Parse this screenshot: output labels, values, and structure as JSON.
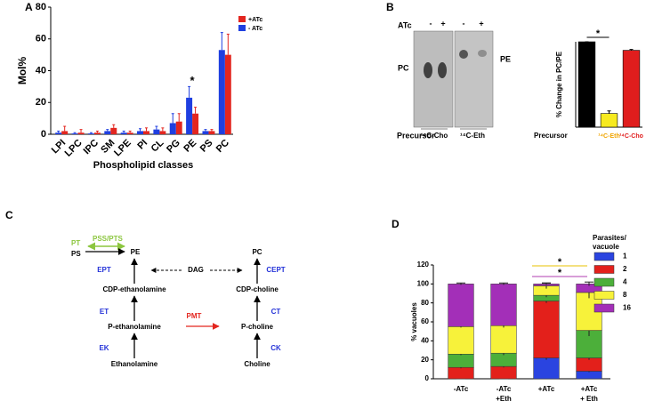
{
  "panels": [
    "A",
    "B",
    "C",
    "D"
  ],
  "chart_data": [
    {
      "type": "bar",
      "ylabel": "Mol%",
      "xlabel": "Phospholipid classes",
      "categories": [
        "LPI",
        "LPC",
        "IPC",
        "SM",
        "LPE",
        "PI",
        "CL",
        "PG",
        "PE",
        "PS",
        "PC"
      ],
      "series": [
        {
          "name": "+ATc",
          "color": "#e3261f",
          "values": [
            2,
            1,
            1,
            4,
            1,
            2,
            2,
            8,
            13,
            2,
            50
          ],
          "errors": [
            3,
            2,
            1,
            2,
            1,
            2,
            2,
            5,
            4,
            1,
            13
          ]
        },
        {
          "name": "- ATc",
          "color": "#1f3fe0",
          "values": [
            1,
            0.5,
            0.5,
            2,
            1,
            2,
            3,
            7,
            23,
            2,
            53
          ],
          "errors": [
            1,
            0.5,
            0.5,
            1,
            1,
            1.5,
            2,
            6,
            7,
            1,
            11
          ]
        }
      ],
      "ylim": [
        0,
        80
      ],
      "yticks": [
        0,
        20,
        40,
        60,
        80
      ],
      "legend": "top-right",
      "annotations": [
        {
          "text": "*",
          "category": "PE"
        }
      ]
    },
    {
      "type": "bar",
      "ylabel": "% Change in PC/PE",
      "xlabel": "Precursor",
      "categories": [
        null,
        "¹⁴C-Eth",
        "¹⁴C-Cho"
      ],
      "values": [
        100,
        16,
        90
      ],
      "errors": [
        0,
        3,
        1
      ],
      "colors": [
        "#000000",
        "#f7ea1f",
        "#e01d1d"
      ],
      "category_colors": [
        "#000000",
        "#f0a400",
        "#e01d1d"
      ],
      "ylim": [
        0,
        100
      ],
      "annotations": [
        {
          "text": "*"
        }
      ]
    },
    {
      "type": "stacked_bar",
      "ylabel": "% vacuoles",
      "categories": [
        [
          "-ATc"
        ],
        [
          "-ATc",
          "+Eth"
        ],
        [
          "+ATc"
        ],
        [
          "+ATc",
          "+ Eth"
        ]
      ],
      "legend_title": [
        "Parasites/",
        "vacuole"
      ],
      "series": [
        {
          "name": "1",
          "color": "#2a44e0",
          "values": [
            0,
            0,
            22,
            8
          ],
          "errors": [
            0,
            0,
            2,
            1
          ]
        },
        {
          "name": "2",
          "color": "#e3201b",
          "values": [
            12,
            13,
            60,
            14
          ],
          "errors": [
            1,
            1,
            2,
            2
          ]
        },
        {
          "name": "4",
          "color": "#4caf3a",
          "values": [
            14,
            14,
            6,
            29
          ],
          "errors": [
            1,
            2,
            2,
            6
          ]
        },
        {
          "name": "8",
          "color": "#f7f23a",
          "values": [
            29,
            29,
            10,
            40
          ],
          "errors": [
            1,
            2,
            3,
            6
          ]
        },
        {
          "name": "16",
          "color": "#a32fb8",
          "values": [
            45,
            44,
            2,
            9
          ],
          "errors": [
            1,
            1,
            1,
            2
          ]
        }
      ],
      "ylim": [
        0,
        120
      ],
      "yticks": [
        0,
        20,
        40,
        60,
        80,
        100,
        120
      ],
      "annotations": [
        {
          "text": "*",
          "color": "#e8c200"
        },
        {
          "text": "*",
          "color": "#b03cb0"
        }
      ]
    }
  ],
  "gel": {
    "treatment": "ATc",
    "lanes": [
      "-",
      "+",
      "-",
      "+"
    ],
    "left_label": "PC",
    "right_label": "PE",
    "precursor_label": "Precursor",
    "precursors": [
      "¹⁴C-Cho",
      "¹⁴C-Eth"
    ]
  },
  "pathway": {
    "pt": "PT",
    "pss_pts": "PSS/PTS",
    "ps": "PS",
    "pe": "PE",
    "ept": "EPT",
    "dag": "DAG",
    "pc": "PC",
    "cept": "CEPT",
    "cdp_eth": "CDP-ethanolamine",
    "cdp_cho": "CDP-choline",
    "et": "ET",
    "ct": "CT",
    "p_eth": "P-ethanolamine",
    "pmt": "PMT",
    "p_cho": "P-choline",
    "ek": "EK",
    "ck": "CK",
    "eth": "Ethanolamine",
    "cho": "Choline"
  }
}
